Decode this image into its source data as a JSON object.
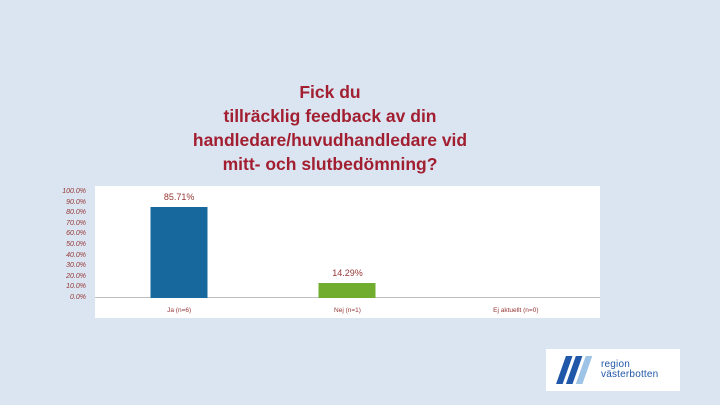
{
  "slide": {
    "background": "#dbe5f1",
    "title_lines": [
      "Fick du",
      "tillräcklig feedback av din",
      "handledare/huvudhandledare vid",
      "mitt- och slutbedömning?"
    ],
    "title_color": "#a21e31"
  },
  "chart_data": {
    "type": "bar",
    "title": "Fick du tillräcklig feedback av din handledare/huvudhandledare vid mitt- och slutbedömning?",
    "categories": [
      "Ja (n=6)",
      "Nej (n=1)",
      "Ej aktuellt (n=0)"
    ],
    "values": [
      85.71,
      14.29,
      0
    ],
    "value_labels": [
      "85.71%",
      "14.29%",
      ""
    ],
    "bar_colors": [
      "#17689c",
      "#70ad2e",
      "#17689c"
    ],
    "ylim": [
      0,
      100
    ],
    "ytick_labels": [
      "100.0%",
      "90.0%",
      "80.0%",
      "70.0%",
      "60.0%",
      "50.0%",
      "40.0%",
      "30.0%",
      "20.0%",
      "10.0%",
      "0.0%"
    ],
    "xlabel": "",
    "ylabel": "",
    "grid": false,
    "legend": "none",
    "text_color": "#943634",
    "plot_background": "#ffffff"
  },
  "logo": {
    "line1": "region",
    "line2": "västerbotten",
    "text_color": "#2157a8",
    "icon_colors": [
      "#2157a8",
      "#9dc3e6"
    ]
  }
}
